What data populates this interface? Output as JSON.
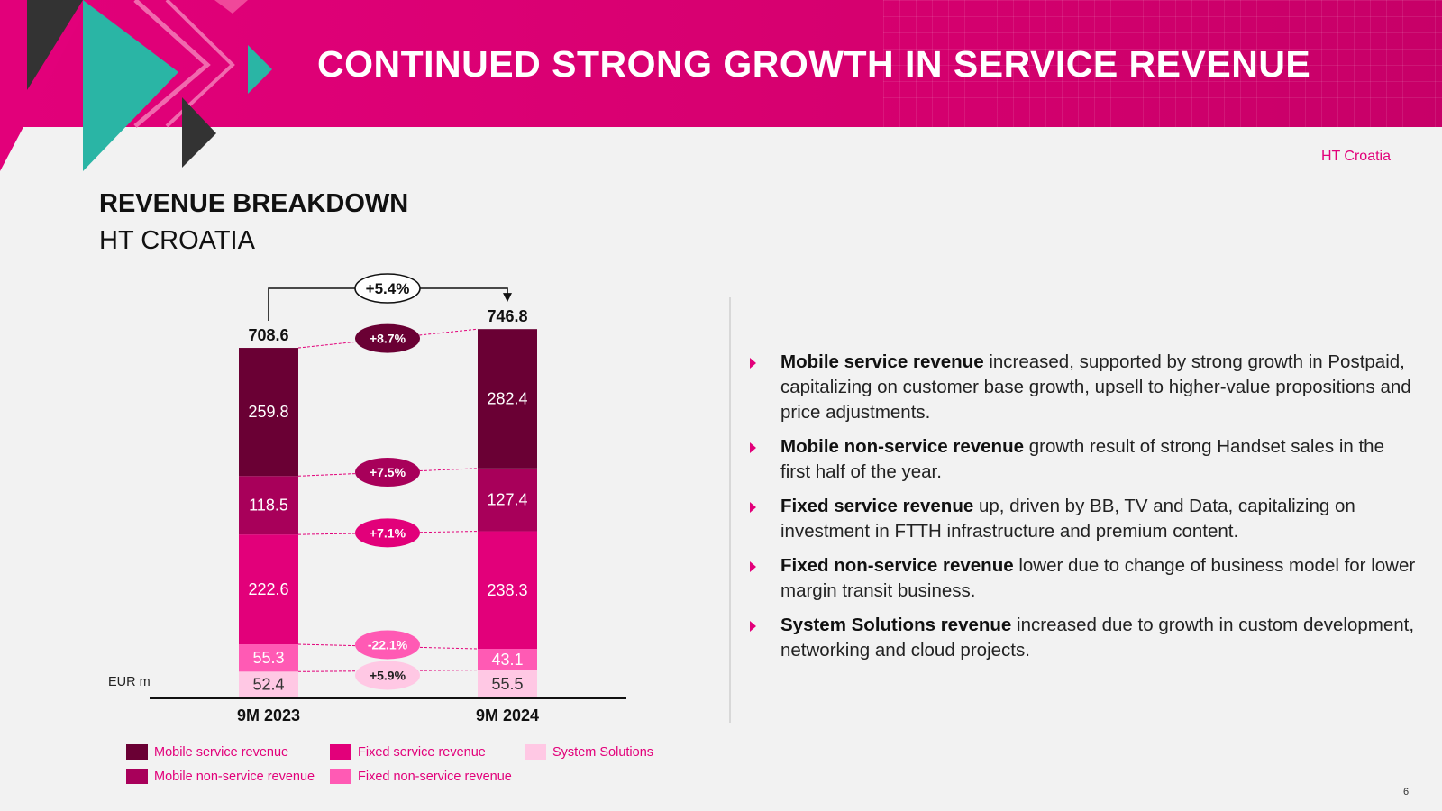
{
  "header": {
    "title": "CONTINUED STRONG GROWTH IN SERVICE REVENUE"
  },
  "brand_label": "HT Croatia",
  "section": {
    "title": "REVENUE BREAKDOWN",
    "subtitle": "HT CROATIA"
  },
  "chart_data": {
    "type": "bar",
    "stacked": true,
    "unit_label": "EUR m",
    "categories": [
      "9M 2023",
      "9M 2024"
    ],
    "totals": [
      708.6,
      746.8
    ],
    "total_growth": "+5.4%",
    "series": [
      {
        "name": "System Solutions",
        "values": [
          52.4,
          55.5
        ],
        "growth": "+5.9%",
        "color": "#ffc8e4",
        "text_color": "#333333",
        "badge_bg": "#ffc8e4",
        "badge_text": "#222222"
      },
      {
        "name": "Fixed non-service revenue",
        "values": [
          55.3,
          43.1
        ],
        "growth": "-22.1%",
        "color": "#ff5ab4",
        "text_color": "#ffffff",
        "badge_bg": "#ff5ab4",
        "badge_text": "#ffffff"
      },
      {
        "name": "Fixed service revenue",
        "values": [
          222.6,
          238.3
        ],
        "growth": "+7.1%",
        "color": "#e2007a",
        "text_color": "#ffffff",
        "badge_bg": "#e2007a",
        "badge_text": "#ffffff"
      },
      {
        "name": "Mobile non-service revenue",
        "values": [
          118.5,
          127.4
        ],
        "growth": "+7.5%",
        "color": "#a8005a",
        "text_color": "#ffffff",
        "badge_bg": "#a8005a",
        "badge_text": "#ffffff"
      },
      {
        "name": "Mobile service revenue",
        "values": [
          259.8,
          282.4
        ],
        "growth": "+8.7%",
        "color": "#6a0034",
        "text_color": "#ffffff",
        "badge_bg": "#6a0034",
        "badge_text": "#ffffff"
      }
    ]
  },
  "legend": [
    {
      "label": "Mobile service revenue",
      "color": "#6a0034"
    },
    {
      "label": "Mobile non-service revenue",
      "color": "#a8005a"
    },
    {
      "label": "Fixed service revenue",
      "color": "#e2007a"
    },
    {
      "label": "Fixed non-service revenue",
      "color": "#ff5ab4"
    },
    {
      "label": "System Solutions",
      "color": "#ffc8e4"
    }
  ],
  "bullets": [
    {
      "bold": "Mobile service revenue",
      "text": " increased, supported by strong growth in Postpaid, capitalizing on customer base growth, upsell to higher-value propositions and price adjustments."
    },
    {
      "bold": "Mobile non-service revenue",
      "text": " growth result of strong Handset sales in the first half of the year."
    },
    {
      "bold": "Fixed service revenue",
      "text": " up, driven by BB, TV and Data, capitalizing on investment in FTTH infrastructure and premium content."
    },
    {
      "bold": "Fixed non-service revenue",
      "text": " lower due to change of business model for lower margin transit business."
    },
    {
      "bold": "System Solutions revenue",
      "text": " increased due to growth in custom development, networking and cloud projects."
    }
  ],
  "page_number": "6",
  "colors": {
    "magenta": "#e2007a",
    "teal": "#2ab5a5",
    "dark": "#333333"
  }
}
